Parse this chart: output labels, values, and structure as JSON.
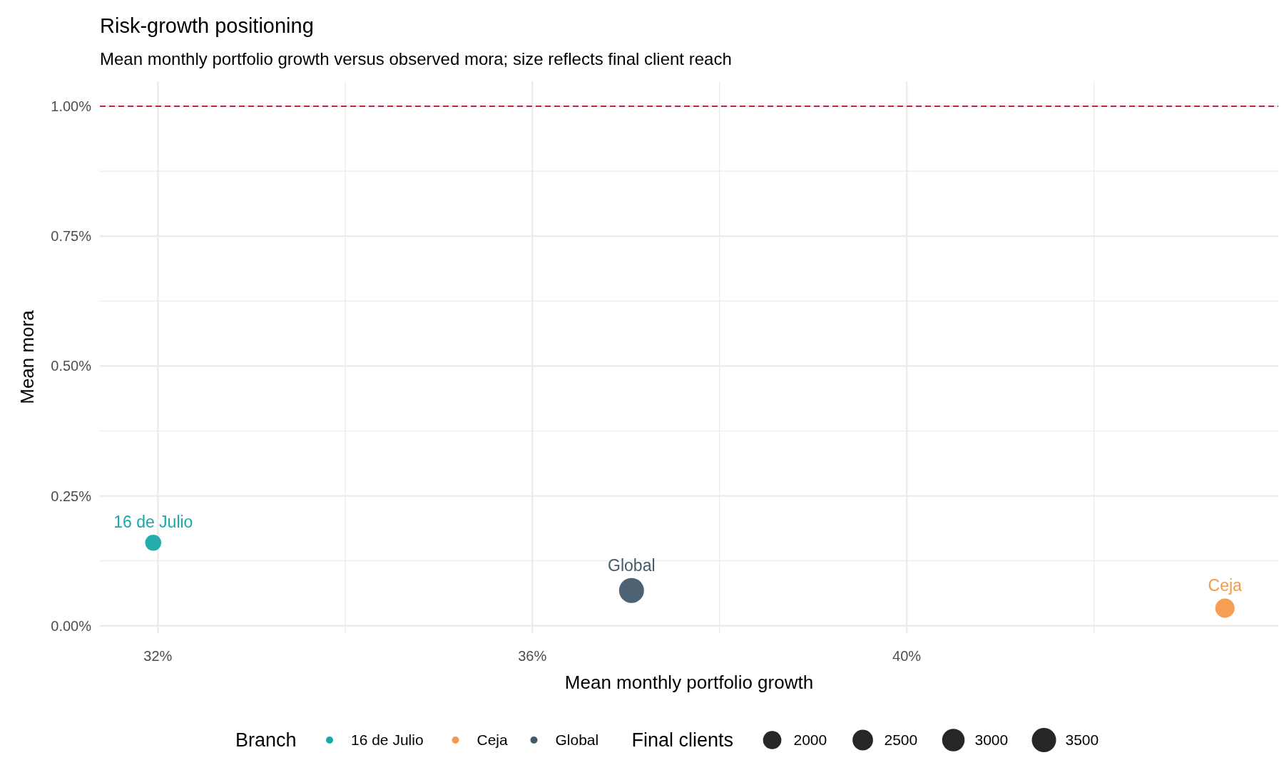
{
  "chart_data": {
    "type": "bubble",
    "title": "Risk-growth positioning",
    "subtitle": "Mean monthly portfolio growth versus observed mora; size reflects final client reach",
    "xlabel": "Mean monthly portfolio growth",
    "ylabel": "Mean mora",
    "legend_title": "Branch",
    "annotations": [
      "Final clients"
    ],
    "series": [
      {
        "name": "16 de Julio",
        "color": "#1aa9a9",
        "x": [
          31.95
        ],
        "values": [
          0.16
        ],
        "sizes": [
          1540
        ]
      },
      {
        "name": "Ceja",
        "color": "#f5994a",
        "x": [
          43.4
        ],
        "values": [
          0.034
        ],
        "sizes": [
          2220
        ]
      },
      {
        "name": "Global",
        "color": "#435a6b",
        "x": [
          37.06
        ],
        "values": [
          0.068
        ],
        "sizes": [
          3700
        ]
      }
    ],
    "xlim": [
      31.38,
      43.97
    ],
    "xticks": [
      {
        "value": 32,
        "label": "32%"
      },
      {
        "value": 36,
        "label": "36%"
      },
      {
        "value": 40,
        "label": "40%"
      }
    ],
    "ylim": [
      -0.014,
      1.048
    ],
    "yticks": [
      {
        "value": 0,
        "label": "0.00%"
      },
      {
        "value": 0.25,
        "label": "0.25%"
      },
      {
        "value": 0.5,
        "label": "0.50%"
      },
      {
        "value": 0.75,
        "label": "0.75%"
      },
      {
        "value": 1,
        "label": "1.00%"
      }
    ],
    "size_legend": [
      2000,
      2500,
      3000,
      3500
    ],
    "ref_lines": [
      {
        "axis": "y",
        "value": 1,
        "color": "#c0283a",
        "line_style": "dashed"
      }
    ],
    "grid": true,
    "legend": "bottom"
  }
}
